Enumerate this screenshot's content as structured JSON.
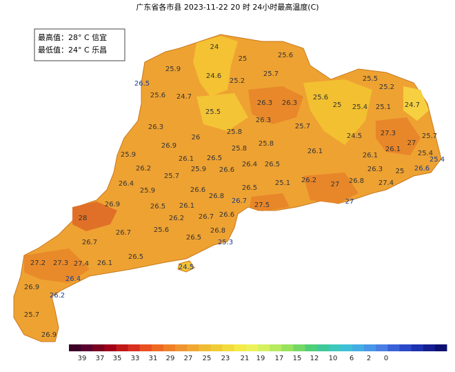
{
  "title": "广东省各市县 2023-11-22 20 时 24小时最高温度(C)",
  "summary": [
    "最高值：28° C 信宜",
    "最低值：24° C 乐昌"
  ],
  "map_labels": [
    24,
    25,
    25.6,
    25.9,
    24.6,
    25.2,
    25.7,
    26.5,
    25.6,
    24.7,
    25.5,
    25.2,
    26.3,
    26.3,
    25.6,
    25,
    25.4,
    25.1,
    24.7,
    25.5,
    26.3,
    26.3,
    25.8,
    25.7,
    27.3,
    24.5,
    25.7,
    26,
    27,
    26.9,
    25.8,
    25.8,
    26.1,
    26.1,
    25.9,
    26.1,
    26.5,
    26.1,
    25.4,
    25.4,
    26.2,
    25.9,
    26.6,
    26.4,
    26.5,
    26.3,
    25,
    26.6,
    25.7,
    26.4,
    26.2,
    27,
    26.8,
    25.1,
    27.4,
    25.9,
    26.6,
    26.5,
    26.8,
    26.9,
    26.5,
    26.1,
    26.7,
    27.5,
    27,
    28,
    26.2,
    26.7,
    26.6,
    25.6,
    26.7,
    26.8,
    26.5,
    25.3,
    26.7,
    26.5,
    27.2,
    27.3,
    27.4,
    26.1,
    24.5,
    26.4,
    26.9,
    26.2,
    25.7,
    26.9
  ],
  "legend": {
    "labels": [
      39,
      37,
      35,
      33,
      31,
      29,
      27,
      25,
      23,
      21,
      19,
      17,
      15,
      12,
      10,
      6,
      2,
      0
    ]
  }
}
